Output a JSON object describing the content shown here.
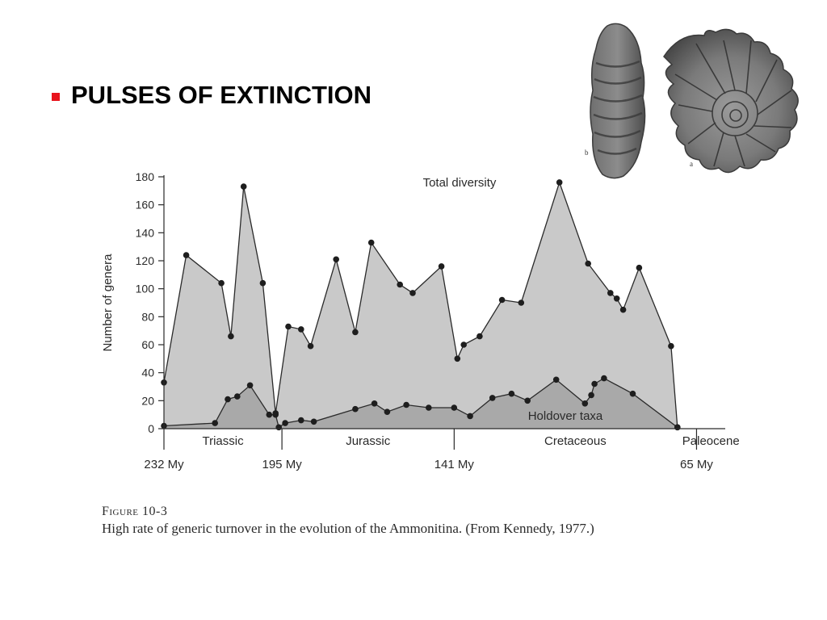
{
  "slide": {
    "title": "PULSES OF EXTINCTION"
  },
  "colors": {
    "bullet": "#e8141c",
    "total_fill": "#c9c9c9",
    "holdover_fill": "#a9a9a9",
    "ink": "#2a2a2a"
  },
  "icons": {
    "bullet": "square-bullet-icon",
    "fossil_side": "ammonite-side-view-image",
    "fossil_front": "ammonite-coiled-shell-image"
  },
  "fossils": {
    "label_b": "b",
    "label_a": "a"
  },
  "caption": {
    "figure": "Figure 10-3",
    "text": "High rate of generic turnover in the evolution of the Ammonitina. (From Kennedy, 1977.)"
  },
  "chart_data": {
    "type": "area",
    "ylabel": "Number of genera",
    "ylim": [
      0,
      180
    ],
    "yticks": [
      0,
      20,
      40,
      60,
      80,
      100,
      120,
      140,
      160,
      180
    ],
    "xlim": [
      232,
      56
    ],
    "x_unit": "My",
    "period_boundaries": [
      {
        "x": 232,
        "label": "232 My"
      },
      {
        "x": 195,
        "label": "195 My"
      },
      {
        "x": 141,
        "label": "141 My"
      },
      {
        "x": 65,
        "label": "65 My"
      }
    ],
    "periods": [
      {
        "name": "Triassic",
        "from": 232,
        "to": 195
      },
      {
        "name": "Jurassic",
        "from": 195,
        "to": 141
      },
      {
        "name": "Cretaceous",
        "from": 141,
        "to": 65
      },
      {
        "name": "Paleocene",
        "from": 65,
        "to": 42
      }
    ],
    "series": [
      {
        "name": "Total diversity",
        "points": [
          [
            232,
            33
          ],
          [
            225,
            124
          ],
          [
            214,
            104
          ],
          [
            211,
            66
          ],
          [
            207,
            173
          ],
          [
            201,
            104
          ],
          [
            197,
            11
          ],
          [
            193,
            73
          ],
          [
            189,
            71
          ],
          [
            186,
            59
          ],
          [
            178,
            121
          ],
          [
            172,
            69
          ],
          [
            167,
            133
          ],
          [
            158,
            103
          ],
          [
            154,
            97
          ],
          [
            145,
            116
          ],
          [
            140,
            50
          ],
          [
            138,
            60
          ],
          [
            133,
            66
          ],
          [
            126,
            92
          ],
          [
            120,
            90
          ],
          [
            108,
            176
          ],
          [
            99,
            118
          ],
          [
            92,
            97
          ],
          [
            90,
            93
          ],
          [
            88,
            85
          ],
          [
            83,
            115
          ],
          [
            73,
            59
          ],
          [
            71,
            1
          ]
        ]
      },
      {
        "name": "Holdover taxa",
        "points": [
          [
            232,
            2
          ],
          [
            216,
            4
          ],
          [
            212,
            21
          ],
          [
            209,
            23
          ],
          [
            205,
            31
          ],
          [
            199,
            10
          ],
          [
            197,
            10
          ],
          [
            196,
            1
          ],
          [
            194,
            4
          ],
          [
            189,
            6
          ],
          [
            185,
            5
          ],
          [
            172,
            14
          ],
          [
            166,
            18
          ],
          [
            162,
            12
          ],
          [
            156,
            17
          ],
          [
            149,
            15
          ],
          [
            141,
            15
          ],
          [
            136,
            9
          ],
          [
            129,
            22
          ],
          [
            123,
            25
          ],
          [
            118,
            20
          ],
          [
            109,
            35
          ],
          [
            100,
            18
          ],
          [
            98,
            24
          ],
          [
            97,
            32
          ],
          [
            94,
            36
          ],
          [
            85,
            25
          ],
          [
            71,
            1
          ]
        ]
      }
    ]
  }
}
